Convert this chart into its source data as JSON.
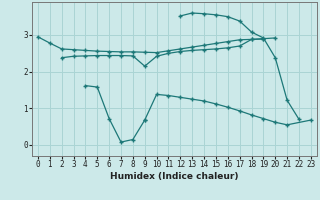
{
  "xlabel": "Humidex (Indice chaleur)",
  "background_color": "#cce9e9",
  "grid_color": "#aad4d4",
  "line_color": "#1d7878",
  "ylim": [
    -0.3,
    3.9
  ],
  "xlim": [
    -0.5,
    23.5
  ],
  "yticks": [
    0,
    1,
    2,
    3
  ],
  "xticks": [
    0,
    1,
    2,
    3,
    4,
    5,
    6,
    7,
    8,
    9,
    10,
    11,
    12,
    13,
    14,
    15,
    16,
    17,
    18,
    19,
    20,
    21,
    22,
    23
  ],
  "line1_x": [
    0,
    1,
    2,
    3,
    4,
    5,
    6,
    7,
    8,
    9,
    10,
    11,
    12,
    13,
    14,
    15,
    16,
    17,
    18,
    19,
    20
  ],
  "line1_y": [
    2.95,
    2.78,
    2.62,
    2.6,
    2.58,
    2.56,
    2.55,
    2.54,
    2.54,
    2.53,
    2.52,
    2.57,
    2.62,
    2.67,
    2.72,
    2.77,
    2.82,
    2.87,
    2.88,
    2.9,
    2.92
  ],
  "line2_x": [
    2,
    3,
    4,
    5,
    6,
    7,
    8,
    9,
    10,
    11,
    12,
    13,
    14,
    15,
    16,
    17,
    18,
    19
  ],
  "line2_y": [
    2.38,
    2.42,
    2.43,
    2.44,
    2.44,
    2.44,
    2.43,
    2.15,
    2.42,
    2.5,
    2.55,
    2.58,
    2.6,
    2.62,
    2.65,
    2.7,
    2.88,
    2.89
  ],
  "line3_x": [
    12,
    13,
    14,
    15,
    16,
    17,
    18,
    19,
    20,
    21,
    22
  ],
  "line3_y": [
    3.52,
    3.6,
    3.58,
    3.55,
    3.5,
    3.38,
    3.08,
    2.92,
    2.38,
    1.22,
    0.7
  ],
  "line4a_x": [
    4,
    5,
    6,
    7,
    8,
    9
  ],
  "line4a_y": [
    1.62,
    1.58,
    0.72,
    0.08,
    0.15,
    0.68
  ],
  "line4b_x": [
    9,
    10,
    11,
    12,
    13,
    14,
    15,
    16,
    17,
    18,
    19,
    20,
    21,
    23
  ],
  "line4b_y": [
    0.68,
    1.38,
    1.35,
    1.3,
    1.25,
    1.2,
    1.12,
    1.03,
    0.93,
    0.82,
    0.72,
    0.62,
    0.55,
    0.68
  ]
}
